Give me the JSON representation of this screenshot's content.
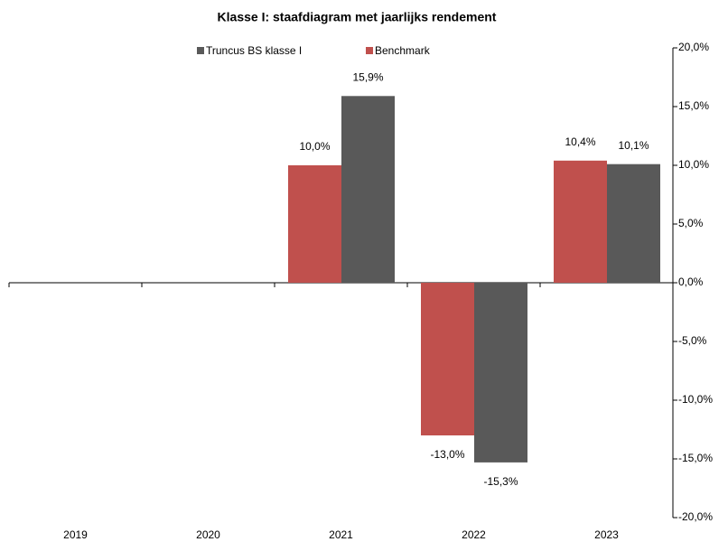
{
  "chart_data": {
    "type": "bar",
    "title": "Klasse I: staafdiagram met jaarlijks rendement",
    "categories": [
      "2019",
      "2020",
      "2021",
      "2022",
      "2023"
    ],
    "series": [
      {
        "name": "Truncus BS klasse I",
        "color": "#595959",
        "values": [
          null,
          null,
          15.9,
          -15.3,
          10.1
        ],
        "value_labels": [
          null,
          null,
          "15,9%",
          "-15,3%",
          "10,1%"
        ]
      },
      {
        "name": "Benchmark",
        "color": "#c0504d",
        "values": [
          null,
          null,
          10.0,
          -13.0,
          10.4
        ],
        "value_labels": [
          null,
          null,
          "10,0%",
          "-13,0%",
          "10,4%"
        ]
      }
    ],
    "ylim": [
      -20,
      20
    ],
    "yticks": [
      {
        "value": -20,
        "label": "-20,0%"
      },
      {
        "value": -15,
        "label": "-15,0%"
      },
      {
        "value": -10,
        "label": "-10,0%"
      },
      {
        "value": -5,
        "label": "-5,0%"
      },
      {
        "value": 0,
        "label": "0,0%"
      },
      {
        "value": 5,
        "label": "5,0%"
      },
      {
        "value": 10,
        "label": "10,0%"
      },
      {
        "value": 15,
        "label": "15,0%"
      },
      {
        "value": 20,
        "label": "20,0%"
      }
    ],
    "grid": false,
    "legend": "top"
  }
}
